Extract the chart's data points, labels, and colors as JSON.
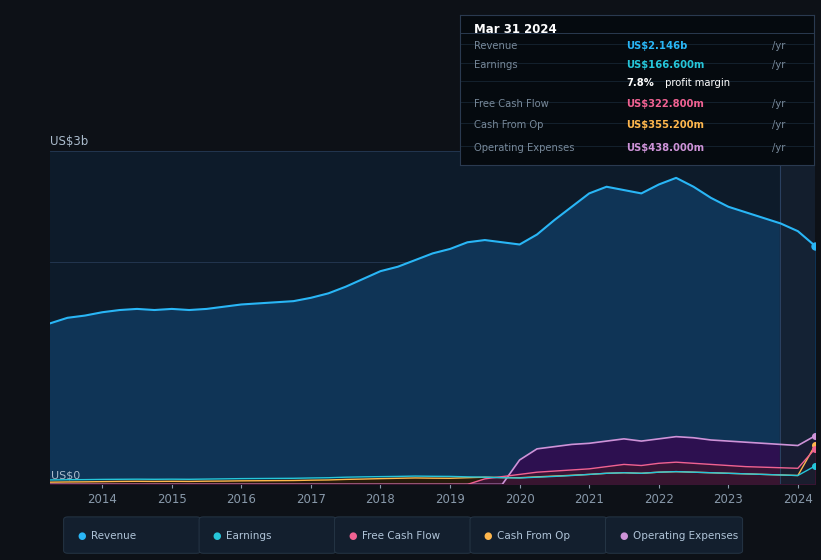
{
  "bg_color": "#0d1117",
  "plot_bg_color": "#0d1b2a",
  "grid_color": "#253a55",
  "years": [
    2013.25,
    2013.5,
    2013.75,
    2014.0,
    2014.25,
    2014.5,
    2014.75,
    2015.0,
    2015.25,
    2015.5,
    2015.75,
    2016.0,
    2016.25,
    2016.5,
    2016.75,
    2017.0,
    2017.25,
    2017.5,
    2017.75,
    2018.0,
    2018.25,
    2018.5,
    2018.75,
    2019.0,
    2019.25,
    2019.5,
    2019.75,
    2020.0,
    2020.25,
    2020.5,
    2020.75,
    2021.0,
    2021.25,
    2021.5,
    2021.75,
    2022.0,
    2022.25,
    2022.5,
    2022.75,
    2023.0,
    2023.25,
    2023.5,
    2023.75,
    2024.0,
    2024.25
  ],
  "revenue": [
    1.45,
    1.5,
    1.52,
    1.55,
    1.57,
    1.58,
    1.57,
    1.58,
    1.57,
    1.58,
    1.6,
    1.62,
    1.63,
    1.64,
    1.65,
    1.68,
    1.72,
    1.78,
    1.85,
    1.92,
    1.96,
    2.02,
    2.08,
    2.12,
    2.18,
    2.2,
    2.18,
    2.16,
    2.25,
    2.38,
    2.5,
    2.62,
    2.68,
    2.65,
    2.62,
    2.7,
    2.76,
    2.68,
    2.58,
    2.5,
    2.45,
    2.4,
    2.35,
    2.28,
    2.146
  ],
  "earnings": [
    0.04,
    0.042,
    0.043,
    0.045,
    0.046,
    0.047,
    0.046,
    0.047,
    0.046,
    0.048,
    0.05,
    0.052,
    0.053,
    0.054,
    0.055,
    0.058,
    0.06,
    0.065,
    0.068,
    0.07,
    0.072,
    0.075,
    0.073,
    0.072,
    0.068,
    0.065,
    0.06,
    0.058,
    0.065,
    0.072,
    0.08,
    0.09,
    0.1,
    0.105,
    0.1,
    0.11,
    0.115,
    0.11,
    0.105,
    0.1,
    0.095,
    0.09,
    0.085,
    0.08,
    0.1666
  ],
  "free_cash_flow": [
    0.0,
    0.0,
    0.0,
    0.0,
    0.0,
    0.0,
    0.0,
    0.0,
    0.0,
    0.0,
    0.0,
    0.0,
    0.0,
    0.0,
    0.0,
    0.0,
    0.0,
    0.0,
    0.0,
    0.0,
    0.0,
    0.0,
    0.0,
    0.0,
    0.0,
    0.05,
    0.07,
    0.09,
    0.11,
    0.12,
    0.13,
    0.14,
    0.16,
    0.18,
    0.17,
    0.19,
    0.2,
    0.19,
    0.18,
    0.17,
    0.16,
    0.155,
    0.15,
    0.145,
    0.3228
  ],
  "cash_from_op": [
    0.02,
    0.022,
    0.023,
    0.025,
    0.027,
    0.028,
    0.027,
    0.028,
    0.027,
    0.029,
    0.03,
    0.032,
    0.033,
    0.034,
    0.035,
    0.038,
    0.04,
    0.045,
    0.048,
    0.052,
    0.055,
    0.058,
    0.056,
    0.055,
    0.06,
    0.065,
    0.062,
    0.06,
    0.068,
    0.075,
    0.082,
    0.09,
    0.1,
    0.105,
    0.1,
    0.11,
    0.115,
    0.11,
    0.105,
    0.1,
    0.095,
    0.09,
    0.085,
    0.08,
    0.3552
  ],
  "operating_expenses": [
    0.0,
    0.0,
    0.0,
    0.0,
    0.0,
    0.0,
    0.0,
    0.0,
    0.0,
    0.0,
    0.0,
    0.0,
    0.0,
    0.0,
    0.0,
    0.0,
    0.0,
    0.0,
    0.0,
    0.0,
    0.0,
    0.0,
    0.0,
    0.0,
    0.0,
    0.0,
    0.0,
    0.22,
    0.32,
    0.34,
    0.36,
    0.37,
    0.39,
    0.41,
    0.39,
    0.41,
    0.43,
    0.42,
    0.4,
    0.39,
    0.38,
    0.37,
    0.36,
    0.35,
    0.438
  ],
  "revenue_color": "#29b6f6",
  "revenue_fill": "#0f3456",
  "earnings_color": "#26c6da",
  "earnings_fill": "#0a2535",
  "free_cash_flow_color": "#f06292",
  "free_cash_flow_fill": "#3a1535",
  "cash_from_op_color": "#ffb74d",
  "cash_from_op_fill": "#2a1a08",
  "operating_expenses_color": "#ce93d8",
  "operating_expenses_fill": "#2d1050",
  "ytick_vals": [
    0,
    1,
    2,
    3
  ],
  "xtick_labels": [
    "2014",
    "2015",
    "2016",
    "2017",
    "2018",
    "2019",
    "2020",
    "2021",
    "2022",
    "2023",
    "2024"
  ],
  "xtick_vals": [
    2014,
    2015,
    2016,
    2017,
    2018,
    2019,
    2020,
    2021,
    2022,
    2023,
    2024
  ],
  "ylabel_text": "US$3b",
  "y0_text": "US$0",
  "tooltip_date": "Mar 31 2024",
  "tooltip_revenue_label": "Revenue",
  "tooltip_revenue_val": "US$2.146b",
  "tooltip_earnings_label": "Earnings",
  "tooltip_earnings_val": "US$166.600m",
  "tooltip_pm": "7.8%",
  "tooltip_pm_suffix": " profit margin",
  "tooltip_fcf_label": "Free Cash Flow",
  "tooltip_fcf_val": "US$322.800m",
  "tooltip_cashop_label": "Cash From Op",
  "tooltip_cashop_val": "US$355.200m",
  "tooltip_opex_label": "Operating Expenses",
  "tooltip_opex_val": "US$438.000m",
  "legend_items": [
    "Revenue",
    "Earnings",
    "Free Cash Flow",
    "Cash From Op",
    "Operating Expenses"
  ],
  "legend_colors": [
    "#29b6f6",
    "#26c6da",
    "#f06292",
    "#ffb74d",
    "#ce93d8"
  ],
  "xmin": 2013.25,
  "xmax": 2024.25,
  "ymin": 0,
  "ymax": 3.0
}
